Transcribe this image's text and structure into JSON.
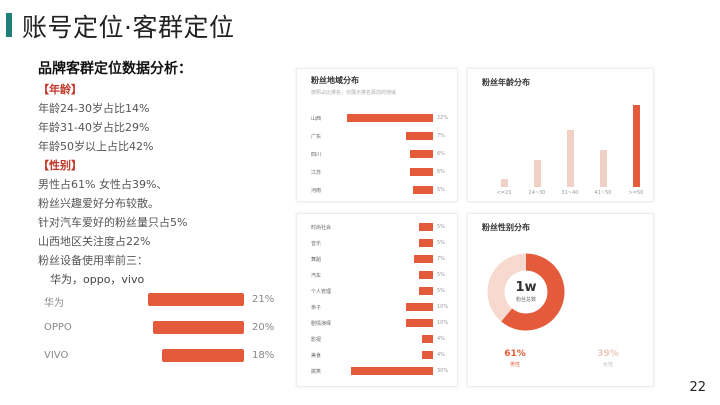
{
  "page_title": "账号定位·客群定位",
  "heading": "品牌客群定位数据分析：",
  "lines": [
    {
      "type": "sect",
      "text": "【年龄】"
    },
    {
      "type": "text",
      "text": "年龄24-30岁占比14%"
    },
    {
      "type": "text",
      "text": "年龄31-40岁占比29%"
    },
    {
      "type": "text",
      "text": "年龄50岁以上占比42%"
    },
    {
      "type": "sect",
      "text": "【性别】"
    },
    {
      "type": "text",
      "text": "男性占61%   女性占39%、"
    },
    {
      "type": "text",
      "text": "粉丝兴趣爱好分布较散。"
    },
    {
      "type": "text",
      "text": "针对汽车爱好的粉丝量只占5%"
    },
    {
      "type": "text",
      "text": "山西地区关注度占22%"
    },
    {
      "type": "text",
      "text": "粉丝设备使用率前三："
    },
    {
      "type": "indent",
      "text": "华为，oppo，vivo"
    }
  ],
  "brand_chart": [
    {
      "label": "华为",
      "value": 21,
      "pct": "21%"
    },
    {
      "label": "OPPO",
      "value": 20,
      "pct": "20%"
    },
    {
      "label": "VIVO",
      "value": 18,
      "pct": "18%"
    }
  ],
  "region_panel": {
    "title": "粉丝地域分布",
    "subtitle": "按照占比排名，仅展示排名靠前的地域",
    "items": [
      {
        "label": "山西",
        "value": 22,
        "pct": "22%"
      },
      {
        "label": "广东",
        "value": 7,
        "pct": "7%"
      },
      {
        "label": "四川",
        "value": 6,
        "pct": "6%"
      },
      {
        "label": "江苏",
        "value": 6,
        "pct": "6%"
      },
      {
        "label": "河南",
        "value": 5,
        "pct": "5%"
      }
    ]
  },
  "age_panel": {
    "title": "粉丝年龄分布",
    "items": [
      {
        "label": "<=23",
        "value": 4,
        "color": "#f1d1c6"
      },
      {
        "label": "24~30",
        "value": 14,
        "color": "#f1d1c6"
      },
      {
        "label": "31~40",
        "value": 29,
        "color": "#f1d1c6"
      },
      {
        "label": "41~50",
        "value": 19,
        "color": "#f1d1c6"
      },
      {
        "label": ">=50",
        "value": 42,
        "color": "#e35b3a"
      }
    ]
  },
  "interest_panel": {
    "items": [
      {
        "label": "时尚社会",
        "value": 5,
        "pct": "5%"
      },
      {
        "label": "音乐",
        "value": 5,
        "pct": "5%"
      },
      {
        "label": "舞蹈",
        "value": 7,
        "pct": "7%"
      },
      {
        "label": "汽车",
        "value": 5,
        "pct": "5%"
      },
      {
        "label": "个人管理",
        "value": 5,
        "pct": "5%"
      },
      {
        "label": "亲子",
        "value": 10,
        "pct": "10%"
      },
      {
        "label": "剧情演绎",
        "value": 10,
        "pct": "10%"
      },
      {
        "label": "影视",
        "value": 4,
        "pct": "4%"
      },
      {
        "label": "美食",
        "value": 4,
        "pct": "4%"
      },
      {
        "label": "搞笑",
        "value": 30,
        "pct": "30%"
      }
    ]
  },
  "gender_panel": {
    "title": "粉丝性别分布",
    "center_value": "1w",
    "center_label": "粉丝总数",
    "male_pct": "61%",
    "male_label": "男性",
    "female_pct": "39%",
    "female_label": "女性",
    "male_value": 61,
    "female_value": 39,
    "male_color": "#e35b3a",
    "female_color": "#f7d9cf"
  },
  "page_number": "22"
}
